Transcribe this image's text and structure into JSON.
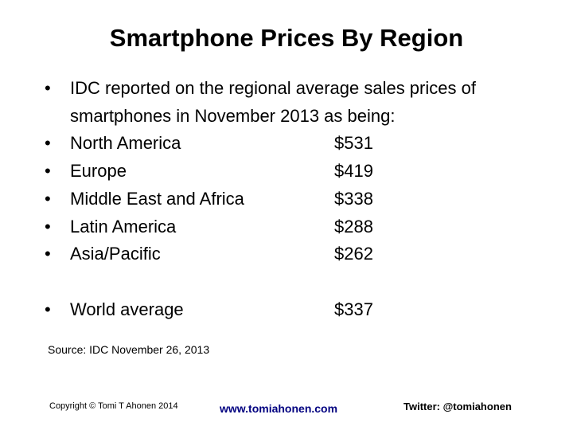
{
  "slide": {
    "title": "Smartphone Prices By Region",
    "intro_line1": "IDC reported on the regional average sales prices of",
    "intro_line2": "smartphones in November 2013 as being:",
    "regions": [
      {
        "name": "North America",
        "price": "$531"
      },
      {
        "name": "Europe",
        "price": "$419"
      },
      {
        "name": "Middle East and Africa",
        "price": "$338"
      },
      {
        "name": "Latin America",
        "price": "$288"
      },
      {
        "name": "Asia/Pacific",
        "price": "$262"
      }
    ],
    "world": {
      "name": "World average",
      "price": "$337"
    },
    "source": "Source: IDC November 26, 2013"
  },
  "footer": {
    "copyright": "Copyright © Tomi T Ahonen 2014",
    "website": "www.tomiahonen.com",
    "twitter": "Twitter: @tomiahonen"
  },
  "colors": {
    "text": "#000000",
    "link": "#000080",
    "background": "#ffffff"
  }
}
